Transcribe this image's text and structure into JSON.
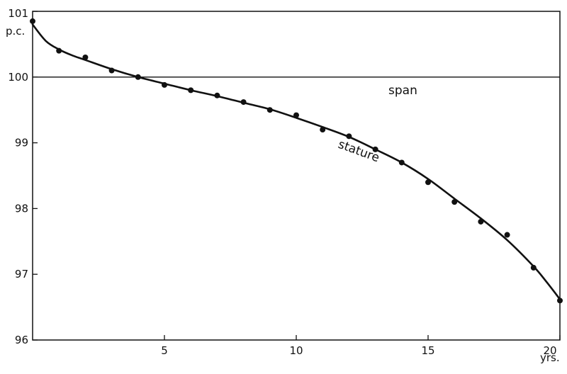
{
  "chart_data": {
    "type": "scatter",
    "title": "",
    "xlabel": "",
    "ylabel": "",
    "x_unit": "yrs.",
    "y_unit": "p.c.",
    "xlim": [
      0,
      20
    ],
    "ylim": [
      96,
      101
    ],
    "x_ticks": [
      5,
      10,
      15,
      20
    ],
    "y_ticks": [
      96,
      97,
      98,
      99,
      100,
      101
    ],
    "grid": false,
    "legend": "none",
    "reference_line": {
      "label": "span",
      "y": 100
    },
    "series": [
      {
        "name": "stature",
        "x": [
          0,
          1,
          2,
          3,
          4,
          5,
          6,
          7,
          8,
          9,
          10,
          11,
          12,
          13,
          14,
          15,
          16,
          17,
          18,
          19,
          20
        ],
        "y": [
          100.85,
          100.4,
          100.3,
          100.1,
          100.0,
          99.88,
          99.8,
          99.72,
          99.62,
          99.5,
          99.42,
          99.2,
          99.1,
          98.9,
          98.7,
          98.4,
          98.1,
          97.8,
          97.6,
          97.1,
          96.6
        ]
      }
    ],
    "fit_curve": {
      "x": [
        0,
        0.5,
        1,
        1.5,
        2,
        3,
        4,
        5,
        6,
        7,
        8,
        9,
        10,
        11,
        12,
        13,
        14,
        15,
        16,
        17,
        18,
        19,
        19.5,
        20
      ],
      "y": [
        100.8,
        100.55,
        100.42,
        100.33,
        100.26,
        100.12,
        100.0,
        99.9,
        99.8,
        99.71,
        99.61,
        99.51,
        99.38,
        99.24,
        99.09,
        98.9,
        98.7,
        98.45,
        98.15,
        97.85,
        97.52,
        97.12,
        96.88,
        96.62
      ]
    },
    "colors": {
      "ink": "#111111",
      "background": "#ffffff"
    }
  }
}
